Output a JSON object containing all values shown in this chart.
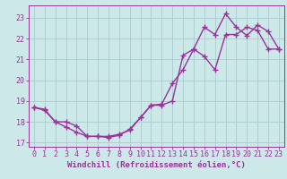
{
  "line1_x": [
    0,
    1,
    2,
    3,
    4,
    5,
    6,
    7,
    8,
    9,
    10,
    11,
    12,
    13,
    14,
    15,
    16,
    17,
    18,
    19,
    20,
    21,
    22,
    23
  ],
  "line1_y": [
    18.7,
    18.6,
    18.0,
    18.0,
    17.8,
    17.3,
    17.3,
    17.3,
    17.4,
    17.6,
    18.2,
    18.8,
    18.8,
    19.0,
    21.2,
    21.5,
    21.15,
    20.5,
    22.2,
    22.2,
    22.55,
    22.4,
    21.5,
    21.5
  ],
  "line2_x": [
    0,
    1,
    2,
    3,
    4,
    5,
    6,
    7,
    8,
    9,
    10,
    11,
    12,
    13,
    14,
    15,
    16,
    17,
    18,
    19,
    20,
    21,
    22,
    23
  ],
  "line2_y": [
    18.7,
    18.55,
    18.0,
    17.75,
    17.5,
    17.3,
    17.3,
    17.25,
    17.35,
    17.65,
    18.2,
    18.8,
    18.85,
    19.85,
    20.5,
    21.5,
    22.55,
    22.2,
    23.2,
    22.55,
    22.15,
    22.65,
    22.35,
    21.5
  ],
  "line_color": "#993399",
  "marker": "+",
  "markersize": 4,
  "linewidth": 1.0,
  "bg_color": "#cce8e8",
  "grid_color": "#aacccc",
  "xlabel": "Windchill (Refroidissement éolien,°C)",
  "xlabel_fontsize": 6.5,
  "tick_fontsize": 6.0,
  "xlim": [
    -0.5,
    23.5
  ],
  "ylim": [
    16.8,
    23.6
  ],
  "yticks": [
    17,
    18,
    19,
    20,
    21,
    22,
    23
  ],
  "xticks": [
    0,
    1,
    2,
    3,
    4,
    5,
    6,
    7,
    8,
    9,
    10,
    11,
    12,
    13,
    14,
    15,
    16,
    17,
    18,
    19,
    20,
    21,
    22,
    23
  ]
}
